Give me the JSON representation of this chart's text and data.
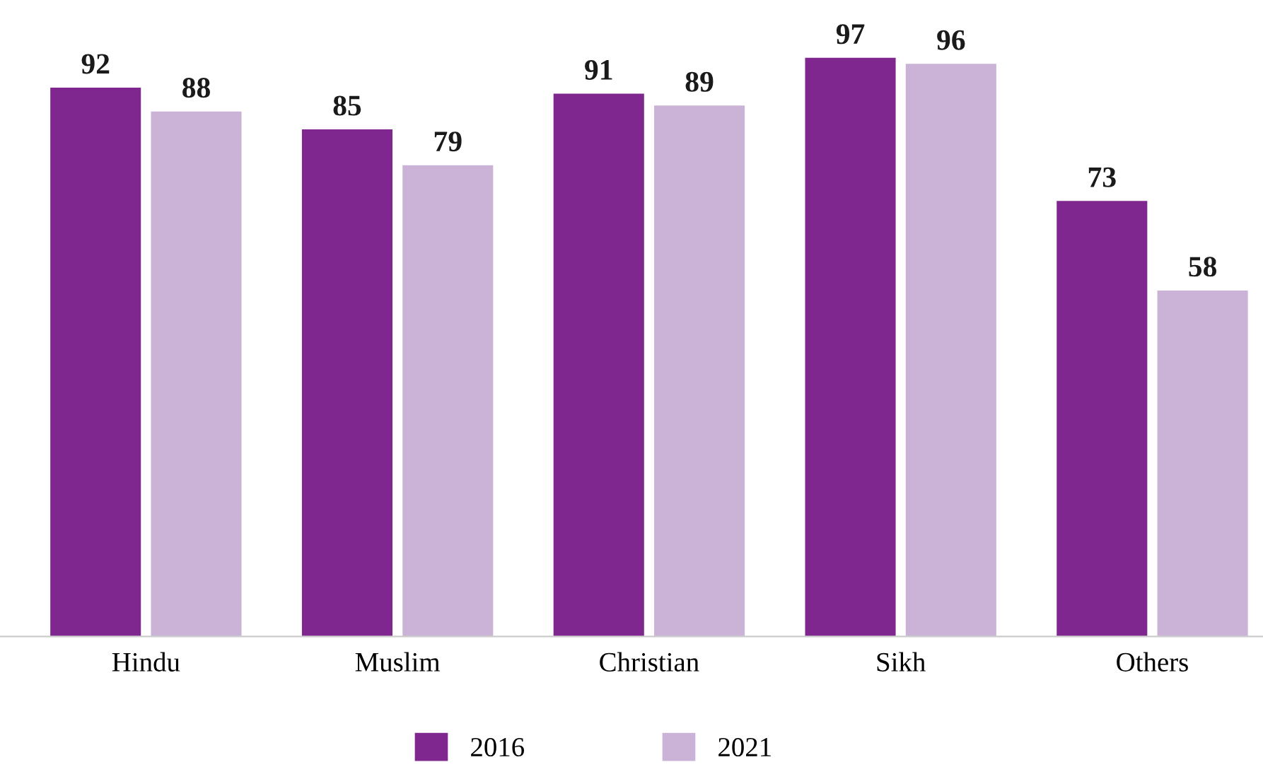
{
  "chart_data": {
    "type": "bar",
    "categories": [
      "Hindu",
      "Muslim",
      "Christian",
      "Sikh",
      "Others"
    ],
    "series": [
      {
        "name": "2016",
        "color": "#7f278f",
        "values": [
          92,
          85,
          91,
          97,
          73
        ]
      },
      {
        "name": "2021",
        "color": "#cbb3d7",
        "values": [
          88,
          79,
          89,
          96,
          58
        ]
      }
    ],
    "data_labels": true,
    "legend": "bottom",
    "grid": false,
    "tick_labels": "x"
  }
}
